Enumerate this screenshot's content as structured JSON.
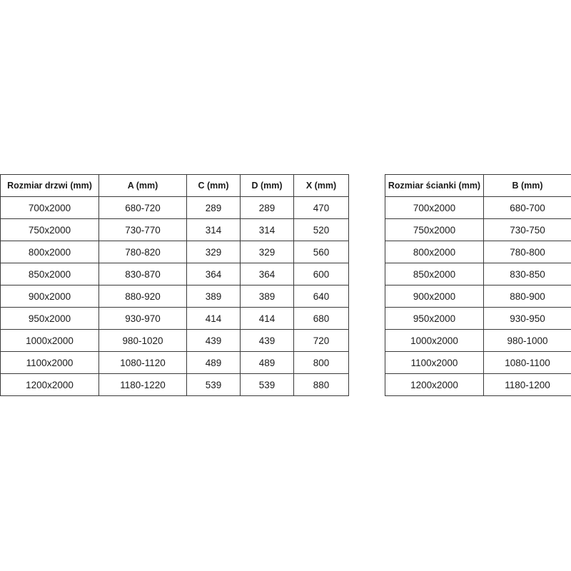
{
  "door_table": {
    "headers": [
      "Rozmiar drzwi (mm)",
      "A (mm)",
      "C (mm)",
      "D (mm)",
      "X (mm)"
    ],
    "rows": [
      [
        "700x2000",
        "680-720",
        "289",
        "289",
        "470"
      ],
      [
        "750x2000",
        "730-770",
        "314",
        "314",
        "520"
      ],
      [
        "800x2000",
        "780-820",
        "329",
        "329",
        "560"
      ],
      [
        "850x2000",
        "830-870",
        "364",
        "364",
        "600"
      ],
      [
        "900x2000",
        "880-920",
        "389",
        "389",
        "640"
      ],
      [
        "950x2000",
        "930-970",
        "414",
        "414",
        "680"
      ],
      [
        "1000x2000",
        "980-1020",
        "439",
        "439",
        "720"
      ],
      [
        "1100x2000",
        "1080-1120",
        "489",
        "489",
        "800"
      ],
      [
        "1200x2000",
        "1180-1220",
        "539",
        "539",
        "880"
      ]
    ]
  },
  "wall_table": {
    "headers": [
      "Rozmiar ścianki (mm)",
      "B (mm)"
    ],
    "rows": [
      [
        "700x2000",
        "680-700"
      ],
      [
        "750x2000",
        "730-750"
      ],
      [
        "800x2000",
        "780-800"
      ],
      [
        "850x2000",
        "830-850"
      ],
      [
        "900x2000",
        "880-900"
      ],
      [
        "950x2000",
        "930-950"
      ],
      [
        "1000x2000",
        "980-1000"
      ],
      [
        "1100x2000",
        "1080-1100"
      ],
      [
        "1200x2000",
        "1180-1200"
      ]
    ]
  }
}
